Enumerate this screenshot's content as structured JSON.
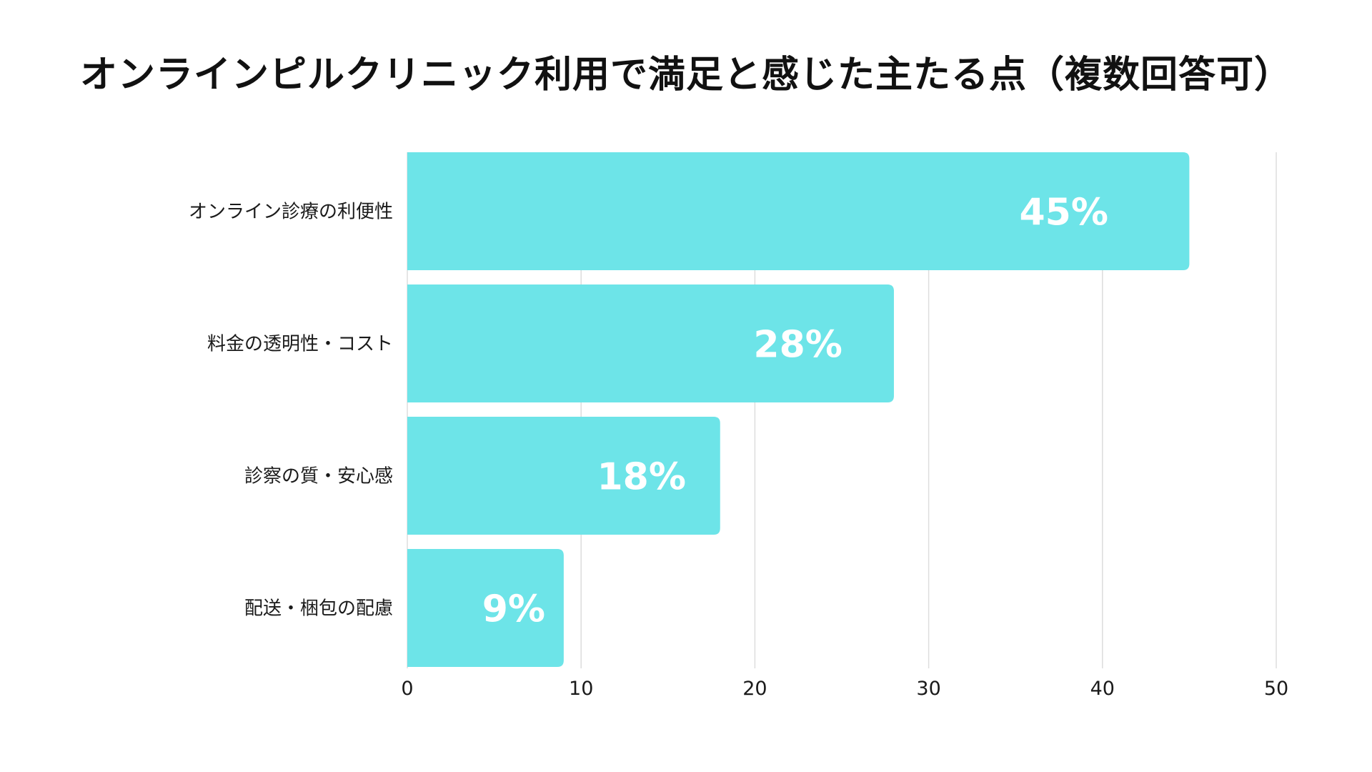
{
  "chart_data": {
    "type": "bar",
    "orientation": "horizontal",
    "title": "オンラインピルクリニック利用で満足と感じた主たる点（複数回答可）",
    "categories": [
      "オンライン診療の利便性",
      "料金の透明性・コスト",
      "診察の質・安心感",
      "配送・梱包の配慮"
    ],
    "values": [
      45,
      28,
      18,
      9
    ],
    "data_labels": [
      "45%",
      "28%",
      "18%",
      "9%"
    ],
    "xlim": [
      0,
      50
    ],
    "xticks": [
      "0",
      "10",
      "20",
      "30",
      "40",
      "50"
    ],
    "grid": "vertical",
    "legend": "none",
    "bar_color": "#6de4e8",
    "grid_color": "#dddddd"
  }
}
